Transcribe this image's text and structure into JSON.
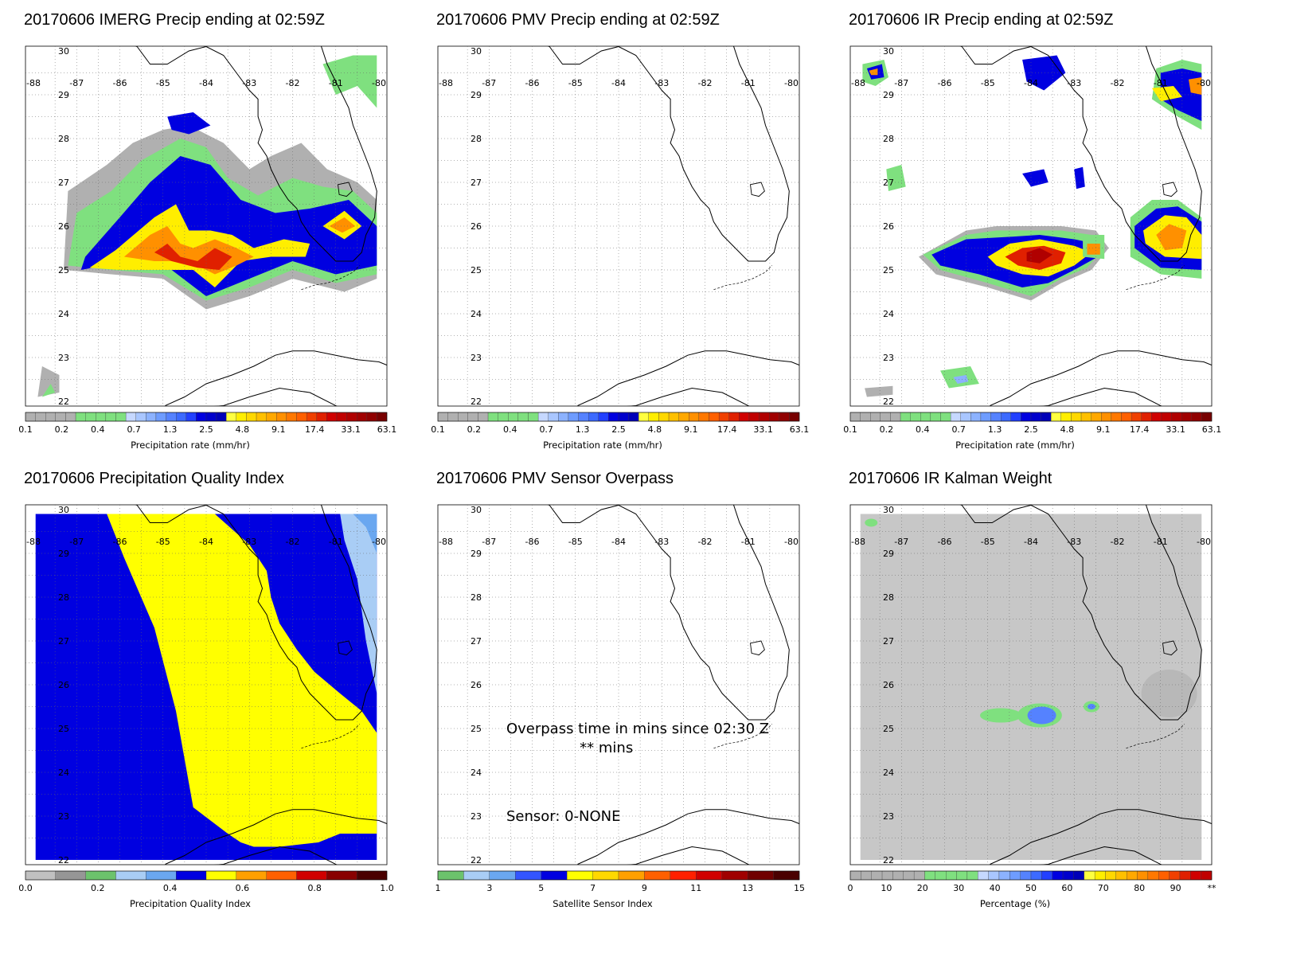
{
  "panels": [
    {
      "id": "imerg",
      "title": "20170606 IMERG Precip ending at 02:59Z",
      "type": "precip",
      "colorbar": {
        "title": "Precipitation rate (mm/hr)",
        "ticks": [
          "0.1",
          "0.2",
          "0.4",
          "0.7",
          "1.3",
          "2.5",
          "4.8",
          "9.1",
          "17.4",
          "33.1",
          "63.1"
        ]
      },
      "annotations": []
    },
    {
      "id": "pmv",
      "title": "20170606 PMV Precip ending at 02:59Z",
      "type": "empty",
      "colorbar": {
        "title": "Precipitation rate (mm/hr)",
        "ticks": [
          "0.1",
          "0.2",
          "0.4",
          "0.7",
          "1.3",
          "2.5",
          "4.8",
          "9.1",
          "17.4",
          "33.1",
          "63.1"
        ]
      },
      "annotations": []
    },
    {
      "id": "ir",
      "title": "20170606 IR Precip ending at 02:59Z",
      "type": "ir",
      "colorbar": {
        "title": "Precipitation rate (mm/hr)",
        "ticks": [
          "0.1",
          "0.2",
          "0.4",
          "0.7",
          "1.3",
          "2.5",
          "4.8",
          "9.1",
          "17.4",
          "33.1",
          "63.1"
        ]
      },
      "annotations": []
    },
    {
      "id": "pqi",
      "title": "20170606 Precipitation Quality Index",
      "type": "quality",
      "colorbar": {
        "title": "Precipitation Quality Index",
        "ticks": [
          "0.0",
          "0.2",
          "0.4",
          "0.6",
          "0.8",
          "1.0"
        ]
      },
      "annotations": []
    },
    {
      "id": "overpass",
      "title": "20170606 PMV Sensor Overpass",
      "type": "empty",
      "colorbar": {
        "title": "Satellite Sensor Index",
        "ticks": [
          "1",
          "3",
          "5",
          "7",
          "9",
          "11",
          "13",
          "15"
        ]
      },
      "annotations": [
        "Overpass time in mins since 02:30 Z",
        "** mins",
        "Sensor:   0-NONE"
      ]
    },
    {
      "id": "kalman",
      "title": "20170606 IR Kalman Weight",
      "type": "kalman",
      "colorbar": {
        "title": "Percentage (%)",
        "ticks": [
          "0",
          "10",
          "20",
          "30",
          "40",
          "50",
          "60",
          "70",
          "80",
          "90",
          "**"
        ]
      },
      "annotations": []
    }
  ],
  "axes": {
    "lon_labels": [
      "-88",
      "-87",
      "-86",
      "-85",
      "-84",
      "-83",
      "-82",
      "-81",
      "-80"
    ],
    "lat_labels": [
      "30",
      "29",
      "28",
      "27",
      "26",
      "25",
      "24",
      "23",
      "22"
    ]
  },
  "colors": {
    "precip_scale": [
      "#b0b0b0",
      "#b0b0b0",
      "#b0b0b0",
      "#b0b0b0",
      "#b0b0b0",
      "#7fe07f",
      "#7fe07f",
      "#7fe07f",
      "#7fe07f",
      "#7fe07f",
      "#c6d8ff",
      "#a9c6ff",
      "#8cb2ff",
      "#6e9cff",
      "#5582ff",
      "#3c6aff",
      "#2240ff",
      "#0000e0",
      "#0000cc",
      "#0000b8",
      "#ffff40",
      "#ffee00",
      "#ffd800",
      "#ffc000",
      "#ffa800",
      "#ff9000",
      "#ff7800",
      "#ff6000",
      "#f04000",
      "#e02000",
      "#d00000",
      "#c00000",
      "#b00000",
      "#a00000",
      "#900000",
      "#780000"
    ],
    "quality_scale": [
      "#c0c0c0",
      "#969696",
      "#6cc36c",
      "#a9cdf5",
      "#6aa7f0",
      "#0000e0",
      "#ffff00",
      "#ffa000",
      "#ff6000",
      "#d00000",
      "#880000",
      "#4a0000"
    ],
    "sensor_scale": [
      "#6cc36c",
      "#a9cdf5",
      "#6aa7f0",
      "#3355ff",
      "#0000e0",
      "#ffff00",
      "#ffd800",
      "#ffa000",
      "#ff6000",
      "#ff2000",
      "#d00000",
      "#a00000",
      "#700000",
      "#4a0000"
    ],
    "kalman_scale": [
      "#b0b0b0",
      "#b0b0b0",
      "#b0b0b0",
      "#b0b0b0",
      "#b0b0b0",
      "#b0b0b0",
      "#b0b0b0",
      "#7fe07f",
      "#7fe07f",
      "#7fe07f",
      "#7fe07f",
      "#7fe07f",
      "#c6d8ff",
      "#a9c6ff",
      "#8cb2ff",
      "#6e9cff",
      "#5582ff",
      "#3c6aff",
      "#2240ff",
      "#0000e0",
      "#0000cc",
      "#0000b8",
      "#ffff40",
      "#ffee00",
      "#ffd800",
      "#ffc000",
      "#ffa800",
      "#ff9000",
      "#ff7800",
      "#ff6000",
      "#f04000",
      "#e02000",
      "#d00000",
      "#c00000"
    ]
  }
}
